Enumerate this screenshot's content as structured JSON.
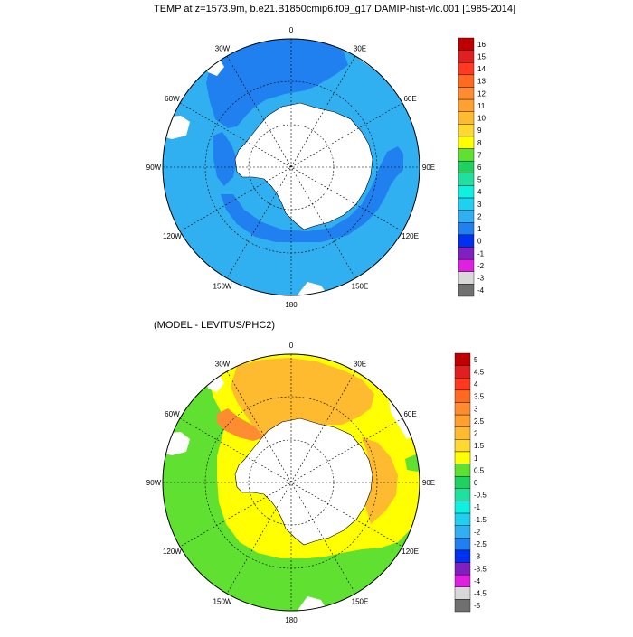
{
  "top_panel": {
    "title": "TEMP at z=1573.9m, b.e21.B1850cmip6.f09_g17.DAMIP-hist-vlc.001 [1985-2014]",
    "lon_labels": [
      "0",
      "30E",
      "60E",
      "90E",
      "120E",
      "150E",
      "180",
      "150W",
      "120W",
      "90W",
      "60W",
      "30W"
    ],
    "colorbar": {
      "labels": [
        "16",
        "15",
        "14",
        "13",
        "12",
        "11",
        "10",
        "9",
        "8",
        "7",
        "6",
        "5",
        "4",
        "3",
        "2",
        "1",
        "0",
        "-1",
        "-2",
        "-3",
        "-4"
      ],
      "colors": [
        "#c00000",
        "#e02020",
        "#ff3a20",
        "#ff6a20",
        "#ff8c30",
        "#ffa030",
        "#ffbb30",
        "#ffd930",
        "#ffff00",
        "#60e030",
        "#20d060",
        "#20e0a0",
        "#10f0e0",
        "#20d0f0",
        "#30b0f0",
        "#2080f0",
        "#0030f0",
        "#8020c0",
        "#e020e0",
        "#d8d8d8",
        "#707070"
      ]
    }
  },
  "bottom_panel": {
    "title": "(MODEL - LEVITUS/PHC2)",
    "lon_labels": [
      "0",
      "30E",
      "60E",
      "90E",
      "120E",
      "150E",
      "180",
      "150W",
      "120W",
      "90W",
      "60W",
      "30W"
    ],
    "colorbar": {
      "labels": [
        "5",
        "4.5",
        "4",
        "3.5",
        "3",
        "2.5",
        "2",
        "1.5",
        "1",
        "0.5",
        "0",
        "-0.5",
        "-1",
        "-1.5",
        "-2",
        "-2.5",
        "-3",
        "-3.5",
        "-4",
        "-4.5",
        "-5"
      ],
      "colors": [
        "#c00000",
        "#e02020",
        "#ff3a20",
        "#ff6a20",
        "#ff8c30",
        "#ffa030",
        "#ffbb30",
        "#ffd930",
        "#ffff00",
        "#60e030",
        "#20d060",
        "#20e0a0",
        "#10f0e0",
        "#20d0f0",
        "#30b0f0",
        "#2080f0",
        "#0030f0",
        "#8020c0",
        "#e020e0",
        "#d8d8d8",
        "#707070"
      ]
    }
  }
}
